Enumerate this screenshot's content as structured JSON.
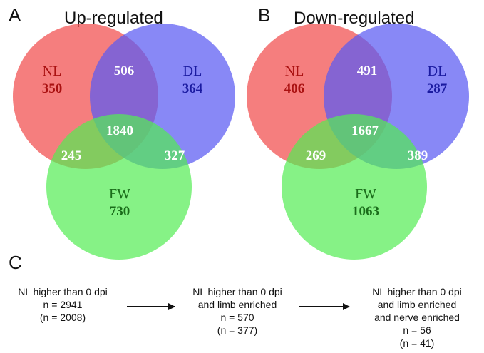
{
  "colors": {
    "nl": "#f25a5a",
    "dl": "#5a5af2",
    "fw": "#52ec52",
    "nl_label": "#aa1111",
    "dl_label": "#1a1aa0",
    "fw_label": "#1b6d1b"
  },
  "panel_a": {
    "letter": "A",
    "title": "Up-regulated",
    "venn": {
      "nl_label": "NL",
      "nl_only": "350",
      "dl_label": "DL",
      "dl_only": "364",
      "fw_label": "FW",
      "fw_only": "730",
      "nl_dl": "506",
      "nl_fw": "245",
      "dl_fw": "327",
      "all": "1840"
    }
  },
  "panel_b": {
    "letter": "B",
    "title": "Down-regulated",
    "venn": {
      "nl_label": "NL",
      "nl_only": "406",
      "dl_label": "DL",
      "dl_only": "287",
      "fw_label": "FW",
      "fw_only": "1063",
      "nl_dl": "491",
      "nl_fw": "269",
      "dl_fw": "389",
      "all": "1667"
    }
  },
  "panel_c": {
    "letter": "C",
    "steps": [
      {
        "lines": [
          "NL higher than 0 dpi",
          "n = 2941",
          "(n = 2008)"
        ]
      },
      {
        "lines": [
          "NL higher than 0 dpi",
          "and limb enriched",
          "n = 570",
          "(n = 377)"
        ]
      },
      {
        "lines": [
          "NL higher than 0 dpi",
          "and limb enriched",
          "and nerve enriched",
          "n = 56",
          "(n = 41)"
        ]
      }
    ]
  }
}
